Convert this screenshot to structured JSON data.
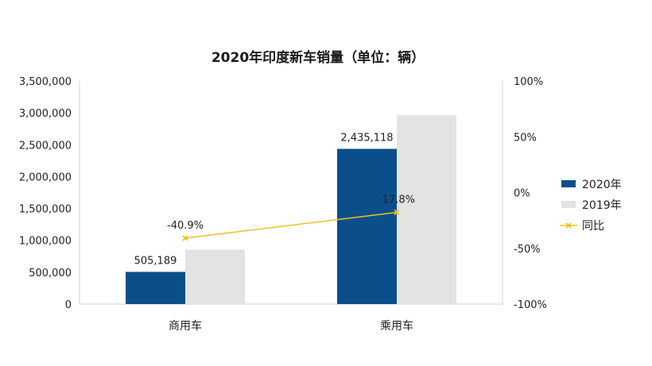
{
  "chart_data": {
    "type": "bar",
    "title": "2020年印度新车销量（单位：辆）",
    "categories": [
      "商用车",
      "乘用车"
    ],
    "series": [
      {
        "name": "2020年",
        "type": "bar",
        "axis": "left",
        "color": "#0b4f8a",
        "values": [
          505189,
          2435118
        ],
        "labels": [
          "505,189",
          "2,435,118"
        ]
      },
      {
        "name": "2019年",
        "type": "bar",
        "axis": "left",
        "color": "#e3e3e3",
        "values": [
          854757,
          2962052
        ]
      },
      {
        "name": "同比",
        "type": "line",
        "axis": "right",
        "color": "#f0c020",
        "values": [
          -40.9,
          -17.8
        ],
        "labels": [
          "-40.9%",
          "-17.8%"
        ]
      }
    ],
    "left_axis": {
      "min": 0,
      "max": 3500000,
      "ticks": [
        "0",
        "500,000",
        "1,000,000",
        "1,500,000",
        "2,000,000",
        "2,500,000",
        "3,000,000",
        "3,500,000"
      ]
    },
    "right_axis": {
      "min": -100,
      "max": 100,
      "ticks": [
        "-100%",
        "-50%",
        "0%",
        "50%",
        "100%"
      ]
    },
    "legend_position": "right"
  }
}
